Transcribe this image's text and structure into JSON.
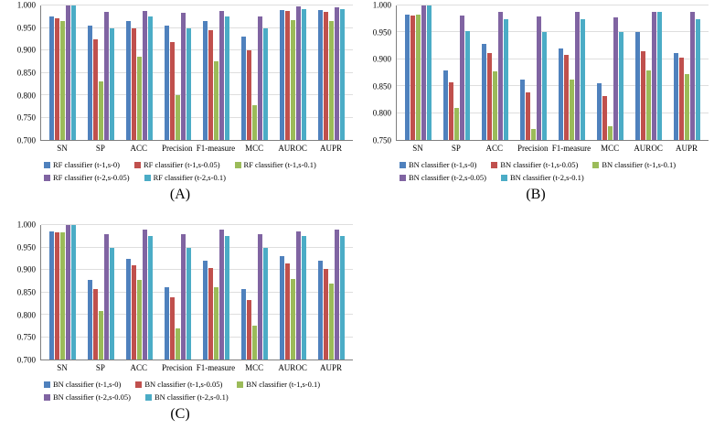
{
  "figure": {
    "background": "#ffffff",
    "axis_color": "#7f7f7f",
    "grid_color": "#dedede"
  },
  "chart_data": [
    {
      "id": "A",
      "type": "bar",
      "caption": "(A)",
      "title": "",
      "xlabel": "",
      "ylabel": "",
      "categories": [
        "SN",
        "SP",
        "ACC",
        "Precision",
        "F1-measure",
        "MCC",
        "AUROC",
        "AUPR"
      ],
      "series": [
        {
          "name": "RF classifier (t-1,s-0)",
          "color": "#4F81BD",
          "values": [
            0.975,
            0.955,
            0.965,
            0.955,
            0.965,
            0.93,
            0.99,
            0.99
          ]
        },
        {
          "name": "RF classifier (t-1,s-0.05)",
          "color": "#C0504D",
          "values": [
            0.972,
            0.925,
            0.948,
            0.918,
            0.945,
            0.9,
            0.988,
            0.985
          ]
        },
        {
          "name": "RF classifier (t-1,s-0.1)",
          "color": "#9BBB59",
          "values": [
            0.965,
            0.83,
            0.885,
            0.8,
            0.875,
            0.778,
            0.968,
            0.965
          ]
        },
        {
          "name": "RF classifier (t-2,s-0.05)",
          "color": "#8064A2",
          "values": [
            1.0,
            0.985,
            0.988,
            0.983,
            0.988,
            0.975,
            0.997,
            0.995
          ]
        },
        {
          "name": "RF classifier (t-2,s-0.1)",
          "color": "#4BACC6",
          "values": [
            1.0,
            0.95,
            0.975,
            0.95,
            0.975,
            0.95,
            0.992,
            0.992
          ]
        }
      ],
      "ylim": [
        0.7,
        1.0
      ],
      "ytick_step": 0.05,
      "grid": true,
      "legend_position": "bottom",
      "legend_rows": [
        [
          0,
          1,
          2
        ],
        [
          3,
          4
        ]
      ]
    },
    {
      "id": "B",
      "type": "bar",
      "caption": "(B)",
      "title": "",
      "xlabel": "",
      "ylabel": "",
      "categories": [
        "SN",
        "SP",
        "ACC",
        "Precision",
        "F1-measure",
        "MCC",
        "AUROC",
        "AUPR"
      ],
      "series": [
        {
          "name": "BN classifier (t-1,s-0)",
          "color": "#4F81BD",
          "values": [
            0.983,
            0.88,
            0.928,
            0.863,
            0.92,
            0.855,
            0.95,
            0.912
          ]
        },
        {
          "name": "BN classifier (t-1,s-0.05)",
          "color": "#C0504D",
          "values": [
            0.982,
            0.858,
            0.912,
            0.838,
            0.908,
            0.832,
            0.915,
            0.903
          ]
        },
        {
          "name": "BN classifier (t-1,s-0.1)",
          "color": "#9BBB59",
          "values": [
            0.983,
            0.81,
            0.878,
            0.77,
            0.862,
            0.775,
            0.88,
            0.872
          ]
        },
        {
          "name": "BN classifier (t-2,s-0.05)",
          "color": "#8064A2",
          "values": [
            1.0,
            0.982,
            0.988,
            0.98,
            0.988,
            0.978,
            0.988,
            0.988
          ]
        },
        {
          "name": "BN classifier (t-2,s-0.1)",
          "color": "#4BACC6",
          "values": [
            1.0,
            0.952,
            0.975,
            0.95,
            0.975,
            0.95,
            0.988,
            0.975
          ]
        }
      ],
      "ylim": [
        0.75,
        1.0
      ],
      "ytick_step": 0.05,
      "grid": true,
      "legend_position": "bottom",
      "legend_rows": [
        [
          0,
          1,
          2
        ],
        [
          3,
          4
        ]
      ]
    },
    {
      "id": "C",
      "type": "bar",
      "caption": "(C)",
      "title": "",
      "xlabel": "",
      "ylabel": "",
      "categories": [
        "SN",
        "SP",
        "ACC",
        "Precision",
        "F1-measure",
        "MCC",
        "AUROC",
        "AUPR"
      ],
      "series": [
        {
          "name": "BN classifier (t-1,s-0)",
          "color": "#4F81BD",
          "values": [
            0.985,
            0.878,
            0.925,
            0.862,
            0.92,
            0.858,
            0.93,
            0.92
          ]
        },
        {
          "name": "BN classifier (t-1,s-0.05)",
          "color": "#C0504D",
          "values": [
            0.983,
            0.858,
            0.91,
            0.838,
            0.905,
            0.832,
            0.915,
            0.903
          ]
        },
        {
          "name": "BN classifier (t-1,s-0.1)",
          "color": "#9BBB59",
          "values": [
            0.983,
            0.808,
            0.878,
            0.77,
            0.862,
            0.775,
            0.88,
            0.87
          ]
        },
        {
          "name": "BN classifier (t-2,s-0.05)",
          "color": "#8064A2",
          "values": [
            1.0,
            0.98,
            0.99,
            0.98,
            0.99,
            0.98,
            0.985,
            0.99
          ]
        },
        {
          "name": "BN classifier (t-2,s-0.1)",
          "color": "#4BACC6",
          "values": [
            1.0,
            0.95,
            0.975,
            0.95,
            0.975,
            0.95,
            0.975,
            0.975
          ]
        }
      ],
      "ylim": [
        0.7,
        1.0
      ],
      "ytick_step": 0.05,
      "grid": true,
      "legend_position": "bottom",
      "legend_rows": [
        [
          0,
          1,
          2
        ],
        [
          3,
          4
        ]
      ]
    }
  ]
}
